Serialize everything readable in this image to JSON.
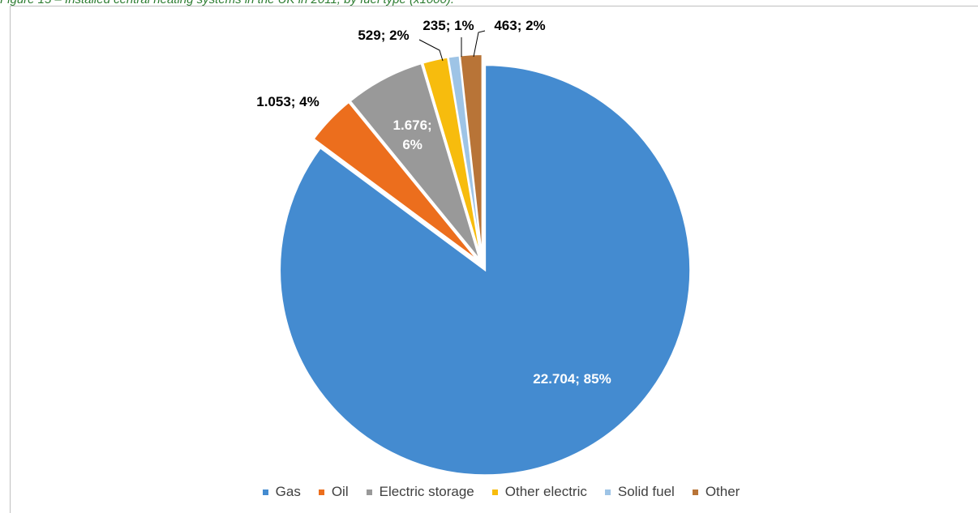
{
  "caption": "Figure 15 – Installed central heating systems in the UK in 2011, by fuel type (x1000).",
  "chart_data": {
    "type": "pie",
    "title": "",
    "legend_position": "bottom",
    "series": [
      {
        "name": "Gas",
        "value": 22704,
        "label": "22.704; 85%",
        "color": "#448bd0"
      },
      {
        "name": "Oil",
        "value": 1053,
        "label": "1.053; 4%",
        "color": "#ec6e1d"
      },
      {
        "name": "Electric storage",
        "value": 1676,
        "label": "1.676; 6%",
        "color": "#999999"
      },
      {
        "name": "Other electric",
        "value": 529,
        "label": "529; 2%",
        "color": "#f7bc0d"
      },
      {
        "name": "Solid fuel",
        "value": 235,
        "label": "235; 1%",
        "color": "#9ec4e6"
      },
      {
        "name": "Other",
        "value": 463,
        "label": "463; 2%",
        "color": "#b87437"
      }
    ]
  }
}
